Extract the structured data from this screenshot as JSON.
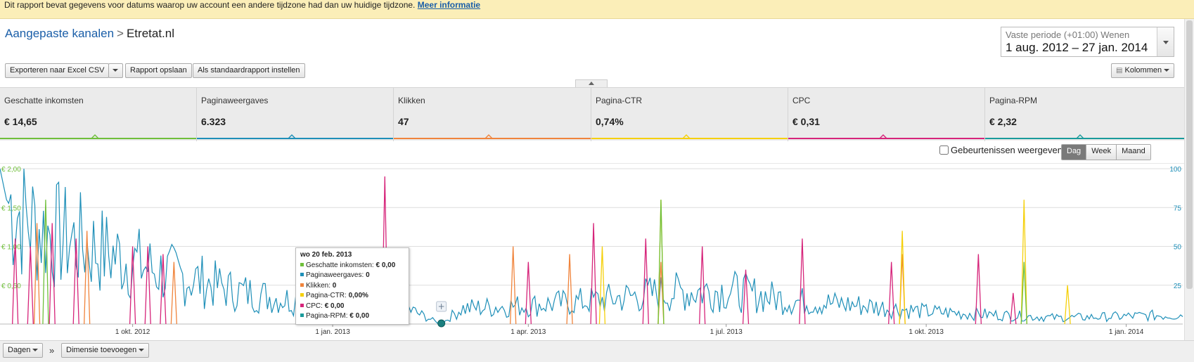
{
  "notice": {
    "text": "Dit rapport bevat gegevens voor datums waarop uw account een andere tijdzone had dan uw huidige tijdzone.",
    "link": "Meer informatie"
  },
  "breadcrumb": {
    "parent": "Aangepaste kanalen",
    "separator": ">",
    "current": "Etretat.nl"
  },
  "date_range": {
    "subtitle": "Vaste periode (+01:00) Wenen",
    "value": "1 aug. 2012 – 27 jan. 2014"
  },
  "toolbar": {
    "export_label": "Exporteren naar Excel CSV",
    "save_label": "Rapport opslaan",
    "default_label": "Als standaardrapport instellen",
    "columns_label": "Kolommen"
  },
  "metrics": [
    {
      "label": "Geschatte inkomsten",
      "value": "€ 14,65",
      "color": "#6fbf3a"
    },
    {
      "label": "Paginaweergaves",
      "value": "6.323",
      "color": "#1e8fb8"
    },
    {
      "label": "Klikken",
      "value": "47",
      "color": "#f0843c"
    },
    {
      "label": "Pagina-CTR",
      "value": "0,74%",
      "color": "#f5d00a"
    },
    {
      "label": "CPC",
      "value": "€ 0,31",
      "color": "#d6247a"
    },
    {
      "label": "Pagina-RPM",
      "value": "€ 2,32",
      "color": "#1a9b9b"
    }
  ],
  "events_label": "Gebeurtenissen weergeven",
  "granularity": {
    "options": [
      "Dag",
      "Week",
      "Maand"
    ],
    "selected": "Dag"
  },
  "chart_data": {
    "type": "line",
    "x_range": [
      "2012-08-01",
      "2014-01-27"
    ],
    "x_ticks": [
      "1 okt. 2012",
      "1 jan. 2013",
      "1 apr. 2013",
      "1 jul. 2013",
      "1 okt. 2013",
      "1 jan. 2014"
    ],
    "y_left_ticks": [
      "€ 2,00",
      "€ 1,50",
      "€ 1,00",
      "€ 0,50"
    ],
    "y_left_range": [
      0,
      2
    ],
    "y_right_ticks": [
      "100",
      "75",
      "50",
      "25"
    ],
    "y_right_range": [
      0,
      100
    ],
    "series": [
      {
        "name": "Paginaweergaves",
        "color": "#1e8fb8",
        "axis": "right",
        "note": "daily values ~5-25, early Aug 2012 up to ~100",
        "points": [
          [
            "2012-08-01",
            100
          ],
          [
            "2012-08-04",
            80
          ],
          [
            "2012-08-10",
            72
          ],
          [
            "2012-08-20",
            60
          ],
          [
            "2012-09-01",
            55
          ],
          [
            "2012-09-15",
            48
          ],
          [
            "2012-10-01",
            40
          ],
          [
            "2012-10-15",
            33
          ],
          [
            "2012-11-01",
            28
          ],
          [
            "2012-11-15",
            22
          ],
          [
            "2012-12-01",
            18
          ],
          [
            "2012-12-15",
            15
          ],
          [
            "2013-01-01",
            14
          ],
          [
            "2013-01-15",
            18
          ],
          [
            "2013-02-01",
            12
          ],
          [
            "2013-02-20",
            0
          ],
          [
            "2013-03-01",
            10
          ],
          [
            "2013-04-01",
            12
          ],
          [
            "2013-05-01",
            15
          ],
          [
            "2013-06-01",
            20
          ],
          [
            "2013-07-01",
            22
          ],
          [
            "2013-08-01",
            15
          ],
          [
            "2013-09-01",
            12
          ],
          [
            "2013-10-01",
            8
          ],
          [
            "2013-11-01",
            6
          ],
          [
            "2013-12-01",
            4
          ],
          [
            "2014-01-01",
            5
          ],
          [
            "2014-01-27",
            6
          ]
        ]
      },
      {
        "name": "CPC",
        "color": "#d6247a",
        "axis": "left",
        "spikes": [
          [
            "2012-08-08",
            1.1
          ],
          [
            "2012-08-15",
            1.0
          ],
          [
            "2012-08-25",
            1.3
          ],
          [
            "2012-09-05",
            1.1
          ],
          [
            "2012-10-01",
            1.0
          ],
          [
            "2012-10-08",
            1.0
          ],
          [
            "2012-10-15",
            0.9
          ],
          [
            "2013-01-25",
            1.9
          ],
          [
            "2013-04-01",
            0.8
          ],
          [
            "2013-05-01",
            1.3
          ],
          [
            "2013-05-25",
            1.1
          ],
          [
            "2013-06-20",
            1.0
          ],
          [
            "2013-07-10",
            0.7
          ],
          [
            "2013-08-05",
            1.1
          ],
          [
            "2013-09-15",
            0.8
          ],
          [
            "2013-10-25",
            0.9
          ],
          [
            "2013-11-10",
            0.4
          ]
        ]
      },
      {
        "name": "Klikken",
        "color": "#f0843c",
        "axis": "left",
        "spikes": [
          [
            "2012-08-18",
            1.3
          ],
          [
            "2012-09-10",
            1.2
          ],
          [
            "2012-10-20",
            0.8
          ],
          [
            "2013-03-25",
            1.0
          ],
          [
            "2013-04-20",
            0.9
          ],
          [
            "2013-06-01",
            0.8
          ],
          [
            "2013-09-20",
            0.9
          ]
        ]
      },
      {
        "name": "Pagina-CTR",
        "color": "#f5d00a",
        "axis": "left",
        "spikes": [
          [
            "2013-05-05",
            1.0
          ],
          [
            "2013-06-01",
            1.6
          ],
          [
            "2013-09-20",
            1.2
          ],
          [
            "2013-11-15",
            1.6
          ],
          [
            "2013-12-05",
            0.5
          ]
        ]
      },
      {
        "name": "Geschatte inkomsten",
        "color": "#6fbf3a",
        "axis": "left",
        "spikes": [
          [
            "2012-08-22",
            1.6
          ],
          [
            "2013-06-01",
            1.6
          ],
          [
            "2013-11-15",
            0.8
          ]
        ]
      }
    ]
  },
  "tooltip": {
    "title": "wo 20 feb. 2013",
    "rows": [
      {
        "label": "Geschatte inkomsten:",
        "value": "€ 0,00",
        "color": "#6fbf3a"
      },
      {
        "label": "Paginaweergaves:",
        "value": "0",
        "color": "#1e8fb8"
      },
      {
        "label": "Klikken:",
        "value": "0",
        "color": "#f0843c"
      },
      {
        "label": "Pagina-CTR:",
        "value": "0,00%",
        "color": "#f5d00a"
      },
      {
        "label": "CPC:",
        "value": "€ 0,00",
        "color": "#d6247a"
      },
      {
        "label": "Pagina-RPM:",
        "value": "€ 0,00",
        "color": "#1a9b9b"
      }
    ]
  },
  "footer": {
    "days_label": "Dagen",
    "chevron": "»",
    "add_dimension_label": "Dimensie toevoegen"
  }
}
